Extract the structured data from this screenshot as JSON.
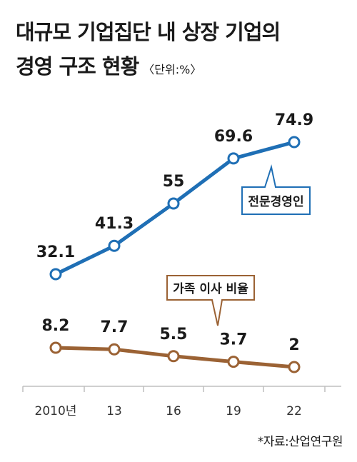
{
  "title": {
    "line1": "대규모 기업집단 내 상장 기업의",
    "line2": "경영 구조 현황",
    "unit": "〈단위:%〉"
  },
  "source": "*자료:산업연구원",
  "colors": {
    "professional": "#1f6fb5",
    "family": "#9b6234",
    "grid": "#bfbfbf"
  },
  "chart_data": {
    "type": "line",
    "categories": [
      "2010년",
      "13",
      "16",
      "19",
      "22"
    ],
    "series": [
      {
        "name": "전문경영인",
        "values": [
          32.1,
          41.3,
          55,
          69.6,
          74.9
        ],
        "labels": [
          "32.1",
          "41.3",
          "55",
          "69.6",
          "74.9"
        ]
      },
      {
        "name": "가족 이사 비율",
        "values": [
          8.2,
          7.7,
          5.5,
          3.7,
          2
        ],
        "labels": [
          "8.2",
          "7.7",
          "5.5",
          "3.7",
          "2"
        ]
      }
    ],
    "xlabel": "",
    "ylabel": "",
    "ylim": [
      0,
      80
    ],
    "grid": false,
    "legend": "callout labels"
  }
}
